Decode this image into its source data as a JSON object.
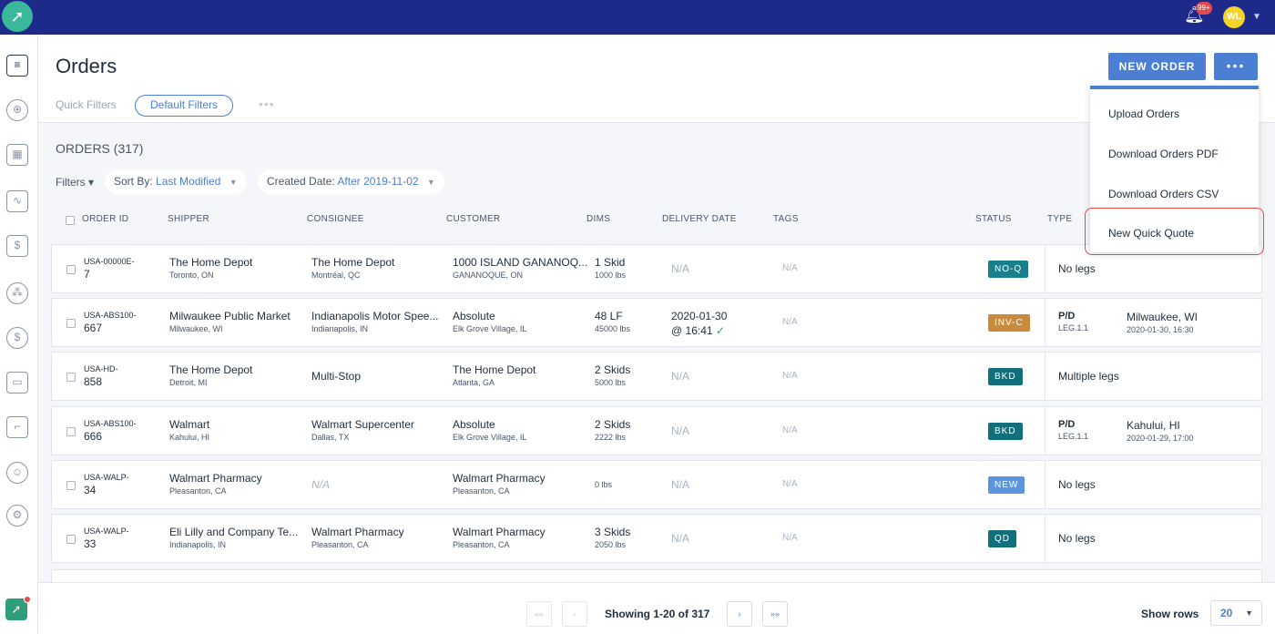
{
  "topbar": {
    "notification_count": "99+",
    "user_initials": "WL"
  },
  "page": {
    "title": "Orders"
  },
  "quick_filters": {
    "label": "Quick Filters",
    "default": "Default Filters",
    "more": "•••"
  },
  "actions": {
    "new_order": "NEW ORDER",
    "more": "•••"
  },
  "menu": {
    "items": [
      "Upload Orders",
      "Download Orders PDF",
      "Download Orders CSV",
      "New Quick Quote"
    ]
  },
  "orders": {
    "count_label": "ORDERS (317)",
    "filters_label": "Filters ▾",
    "sort_label": "Sort By:",
    "sort_value": "Last Modified",
    "created_label": "Created Date:",
    "created_value": "After 2019-11-02"
  },
  "columns": [
    "ORDER ID",
    "SHIPPER",
    "CONSIGNEE",
    "CUSTOMER",
    "DIMS",
    "DELIVERY DATE",
    "TAGS",
    "STATUS",
    "TYPE"
  ],
  "rows": [
    {
      "id_top": "USA-00000E-",
      "id_bot": "7",
      "shipper": "The Home Depot",
      "shipper_loc": "Toronto, ON",
      "consignee": "The Home Depot",
      "consignee_loc": "Montréal, QC",
      "customer": "1000 ISLAND GANANOQ...",
      "customer_loc": "GANANOQUE, ON",
      "dims": "1 Skid",
      "weight": "1000 lbs",
      "delivery": "N/A",
      "delivery_time": "",
      "tags": "N/A",
      "status": "NO-Q",
      "status_color": "#1a7f8c",
      "type_main": "No legs",
      "type_leg": "",
      "type_city": "",
      "type_date": ""
    },
    {
      "id_top": "USA-ABS100-",
      "id_bot": "667",
      "shipper": "Milwaukee Public Market",
      "shipper_loc": "Milwaukee, WI",
      "consignee": "Indianapolis Motor Spee...",
      "consignee_loc": "Indianapolis, IN",
      "customer": "Absolute",
      "customer_loc": "Elk Grove Village, IL",
      "dims": "48 LF",
      "weight": "45000 lbs",
      "delivery": "2020-01-30",
      "delivery_time": "@ 16:41",
      "tags": "N/A",
      "status": "INV-C",
      "status_color": "#c98a3b",
      "type_main": "P/D",
      "type_leg": "LEG.1.1",
      "type_city": "Milwaukee, WI",
      "type_date": "2020-01-30, 16:30"
    },
    {
      "id_top": "USA-HD-",
      "id_bot": "858",
      "shipper": "The Home Depot",
      "shipper_loc": "Detroit, MI",
      "consignee": "Multi-Stop",
      "consignee_loc": "",
      "customer": "The Home Depot",
      "customer_loc": "Atlanta, GA",
      "dims": "2 Skids",
      "weight": "5000 lbs",
      "delivery": "N/A",
      "delivery_time": "",
      "tags": "N/A",
      "status": "BKD",
      "status_color": "#12707d",
      "type_main": "Multiple legs",
      "type_leg": "",
      "type_city": "",
      "type_date": ""
    },
    {
      "id_top": "USA-ABS100-",
      "id_bot": "666",
      "shipper": "Walmart",
      "shipper_loc": "Kahului, HI",
      "consignee": "Walmart Supercenter",
      "consignee_loc": "Dallas, TX",
      "customer": "Absolute",
      "customer_loc": "Elk Grove Village, IL",
      "dims": "2 Skids",
      "weight": "2222 lbs",
      "delivery": "N/A",
      "delivery_time": "",
      "tags": "N/A",
      "status": "BKD",
      "status_color": "#12707d",
      "type_main": "P/D",
      "type_leg": "LEG.1.1",
      "type_city": "Kahului, HI",
      "type_date": "2020-01-29, 17:00"
    },
    {
      "id_top": "USA-WALP-",
      "id_bot": "34",
      "shipper": "Walmart Pharmacy",
      "shipper_loc": "Pleasanton, CA",
      "consignee": "N/A",
      "consignee_loc": "",
      "customer": "Walmart Pharmacy",
      "customer_loc": "Pleasanton, CA",
      "dims": "",
      "weight": "0 lbs",
      "delivery": "N/A",
      "delivery_time": "",
      "tags": "N/A",
      "status": "NEW",
      "status_color": "#5b95e0",
      "type_main": "No legs",
      "type_leg": "",
      "type_city": "",
      "type_date": ""
    },
    {
      "id_top": "USA-WALP-",
      "id_bot": "33",
      "shipper": "Eli Lilly and Company Te...",
      "shipper_loc": "Indianapolis, IN",
      "consignee": "Walmart Pharmacy",
      "consignee_loc": "Pleasanton, CA",
      "customer": "Walmart Pharmacy",
      "customer_loc": "Pleasanton, CA",
      "dims": "3 Skids",
      "weight": "2050 lbs",
      "delivery": "N/A",
      "delivery_time": "",
      "tags": "N/A",
      "status": "QD",
      "status_color": "#12707d",
      "type_main": "No legs",
      "type_leg": "",
      "type_city": "",
      "type_date": ""
    }
  ],
  "footer": {
    "showing": "Showing 1-20 of 317",
    "show_rows_label": "Show rows",
    "rows_value": "20"
  },
  "colors": {
    "brand": "#1e2a8a",
    "accent": "#4a7fd4",
    "alert": "#e5484d"
  }
}
